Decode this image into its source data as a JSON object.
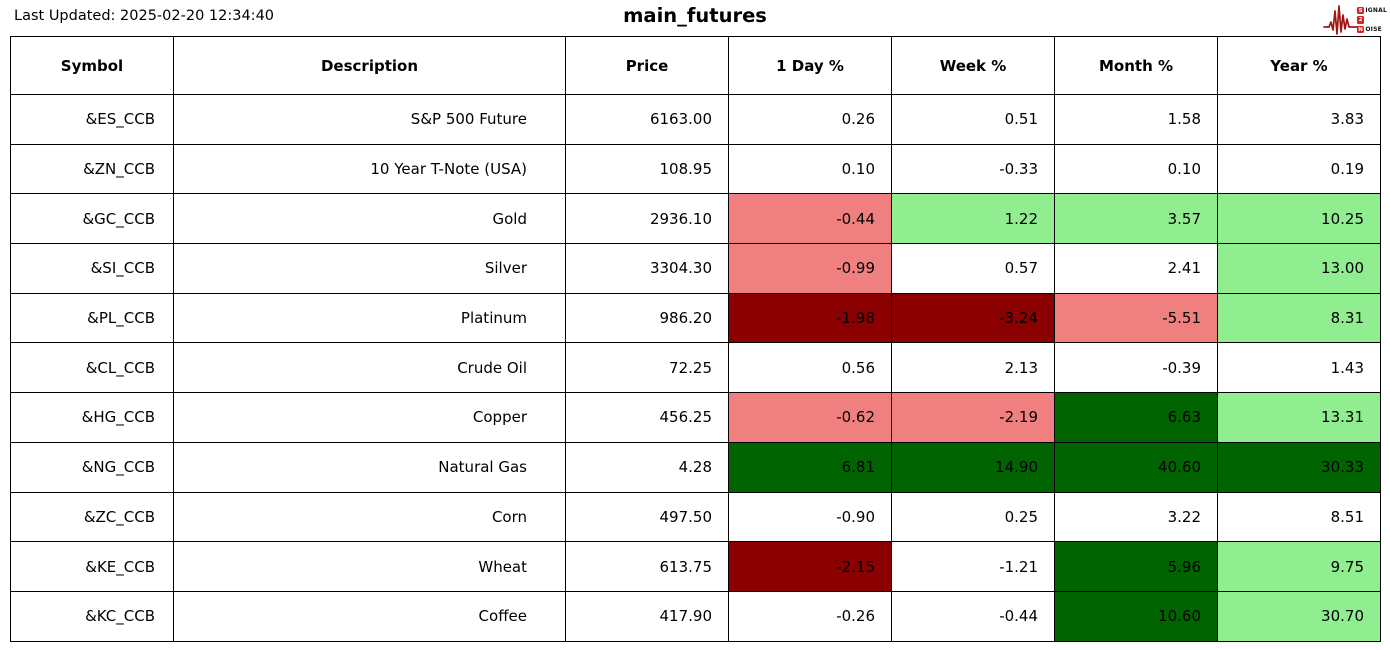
{
  "page": {
    "last_updated": "Last Updated: 2025-02-20 12:34:40",
    "title": "main_futures"
  },
  "logo": {
    "line1_badge": "S",
    "line1_text": "IGNAL",
    "line2_badge": "2",
    "line2_text": "",
    "line3_badge": "N",
    "line3_text": "OISE",
    "waveform_color": "#a31515",
    "badge_color": "#cf2626"
  },
  "colors": {
    "light_red": "#F08080",
    "dark_red": "#8B0000",
    "light_green": "#90EE90",
    "dark_green": "#006400",
    "none": "#FFFFFF"
  },
  "table": {
    "columns": [
      "Symbol",
      "Description",
      "Price",
      "1 Day %",
      "Week %",
      "Month %",
      "Year %"
    ],
    "rows": [
      {
        "symbol": "&ES_CCB",
        "description": "S&P 500 Future",
        "price": "6163.00",
        "pct": [
          "0.26",
          "0.51",
          "1.58",
          "3.83"
        ],
        "pct_colors": [
          "none",
          "none",
          "none",
          "none"
        ]
      },
      {
        "symbol": "&ZN_CCB",
        "description": "10 Year T-Note (USA)",
        "price": "108.95",
        "pct": [
          "0.10",
          "-0.33",
          "0.10",
          "0.19"
        ],
        "pct_colors": [
          "none",
          "none",
          "none",
          "none"
        ]
      },
      {
        "symbol": "&GC_CCB",
        "description": "Gold",
        "price": "2936.10",
        "pct": [
          "-0.44",
          "1.22",
          "3.57",
          "10.25"
        ],
        "pct_colors": [
          "light_red",
          "light_green",
          "light_green",
          "light_green"
        ]
      },
      {
        "symbol": "&SI_CCB",
        "description": "Silver",
        "price": "3304.30",
        "pct": [
          "-0.99",
          "0.57",
          "2.41",
          "13.00"
        ],
        "pct_colors": [
          "light_red",
          "none",
          "none",
          "light_green"
        ]
      },
      {
        "symbol": "&PL_CCB",
        "description": "Platinum",
        "price": "986.20",
        "pct": [
          "-1.98",
          "-3.24",
          "-5.51",
          "8.31"
        ],
        "pct_colors": [
          "dark_red",
          "dark_red",
          "light_red",
          "light_green"
        ]
      },
      {
        "symbol": "&CL_CCB",
        "description": "Crude Oil",
        "price": "72.25",
        "pct": [
          "0.56",
          "2.13",
          "-0.39",
          "1.43"
        ],
        "pct_colors": [
          "none",
          "none",
          "none",
          "none"
        ]
      },
      {
        "symbol": "&HG_CCB",
        "description": "Copper",
        "price": "456.25",
        "pct": [
          "-0.62",
          "-2.19",
          "6.63",
          "13.31"
        ],
        "pct_colors": [
          "light_red",
          "light_red",
          "dark_green",
          "light_green"
        ]
      },
      {
        "symbol": "&NG_CCB",
        "description": "Natural Gas",
        "price": "4.28",
        "pct": [
          "6.81",
          "14.90",
          "40.60",
          "30.33"
        ],
        "pct_colors": [
          "dark_green",
          "dark_green",
          "dark_green",
          "dark_green"
        ]
      },
      {
        "symbol": "&ZC_CCB",
        "description": "Corn",
        "price": "497.50",
        "pct": [
          "-0.90",
          "0.25",
          "3.22",
          "8.51"
        ],
        "pct_colors": [
          "none",
          "none",
          "none",
          "none"
        ]
      },
      {
        "symbol": "&KE_CCB",
        "description": "Wheat",
        "price": "613.75",
        "pct": [
          "-2.15",
          "-1.21",
          "5.96",
          "9.75"
        ],
        "pct_colors": [
          "dark_red",
          "none",
          "dark_green",
          "light_green"
        ]
      },
      {
        "symbol": "&KC_CCB",
        "description": "Coffee",
        "price": "417.90",
        "pct": [
          "-0.26",
          "-0.44",
          "10.60",
          "30.70"
        ],
        "pct_colors": [
          "none",
          "none",
          "dark_green",
          "light_green"
        ]
      }
    ]
  },
  "chart_data": {
    "type": "table",
    "title": "main_futures",
    "columns": [
      "Symbol",
      "Description",
      "Price",
      "1 Day %",
      "Week %",
      "Month %",
      "Year %"
    ],
    "rows": [
      [
        "&ES_CCB",
        "S&P 500 Future",
        6163.0,
        0.26,
        0.51,
        1.58,
        3.83
      ],
      [
        "&ZN_CCB",
        "10 Year T-Note (USA)",
        108.95,
        0.1,
        -0.33,
        0.1,
        0.19
      ],
      [
        "&GC_CCB",
        "Gold",
        2936.1,
        -0.44,
        1.22,
        3.57,
        10.25
      ],
      [
        "&SI_CCB",
        "Silver",
        3304.3,
        -0.99,
        0.57,
        2.41,
        13.0
      ],
      [
        "&PL_CCB",
        "Platinum",
        986.2,
        -1.98,
        -3.24,
        -5.51,
        8.31
      ],
      [
        "&CL_CCB",
        "Crude Oil",
        72.25,
        0.56,
        2.13,
        -0.39,
        1.43
      ],
      [
        "&HG_CCB",
        "Copper",
        456.25,
        -0.62,
        -2.19,
        6.63,
        13.31
      ],
      [
        "&NG_CCB",
        "Natural Gas",
        4.28,
        6.81,
        14.9,
        40.6,
        30.33
      ],
      [
        "&ZC_CCB",
        "Corn",
        497.5,
        -0.9,
        0.25,
        3.22,
        8.51
      ],
      [
        "&KE_CCB",
        "Wheat",
        613.75,
        -2.15,
        -1.21,
        5.96,
        9.75
      ],
      [
        "&KC_CCB",
        "Coffee",
        417.9,
        -0.26,
        -0.44,
        10.6,
        30.7
      ]
    ],
    "cell_highlight_legend": {
      "light_red": "#F08080",
      "dark_red": "#8B0000",
      "light_green": "#90EE90",
      "dark_green": "#006400"
    }
  }
}
